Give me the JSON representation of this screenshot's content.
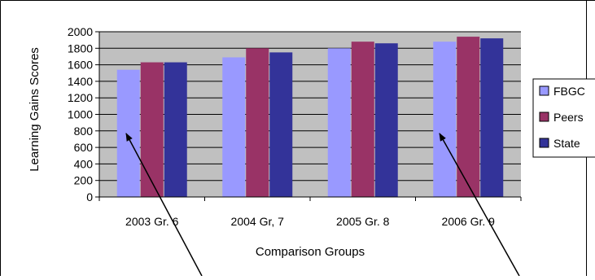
{
  "chart_data": {
    "type": "bar",
    "title": "",
    "xlabel": "Comparison Groups",
    "ylabel": "Learning Gains Scores",
    "categories": [
      "2003 Gr. 6",
      "2004 Gr, 7",
      "2005 Gr. 8",
      "2006 Gr. 9"
    ],
    "series": [
      {
        "name": "FBGC",
        "color": "#9999ff",
        "values": [
          1540,
          1690,
          1800,
          1880
        ]
      },
      {
        "name": "Peers",
        "color": "#993366",
        "values": [
          1630,
          1800,
          1880,
          1940
        ]
      },
      {
        "name": "State",
        "color": "#333399",
        "values": [
          1630,
          1750,
          1860,
          1920
        ]
      }
    ],
    "ylim": [
      0,
      2000
    ],
    "yticks": [
      0,
      200,
      400,
      600,
      800,
      1000,
      1200,
      1400,
      1600,
      1800,
      2000
    ],
    "grid": true,
    "plot_background": "#c0c0c0",
    "legend_position": "right",
    "annotations": [
      {
        "type": "arrow",
        "target_category": "2003 Gr. 6",
        "target_series": "FBGC"
      },
      {
        "type": "arrow",
        "target_category": "2006 Gr. 9",
        "target_series": "FBGC"
      }
    ]
  }
}
